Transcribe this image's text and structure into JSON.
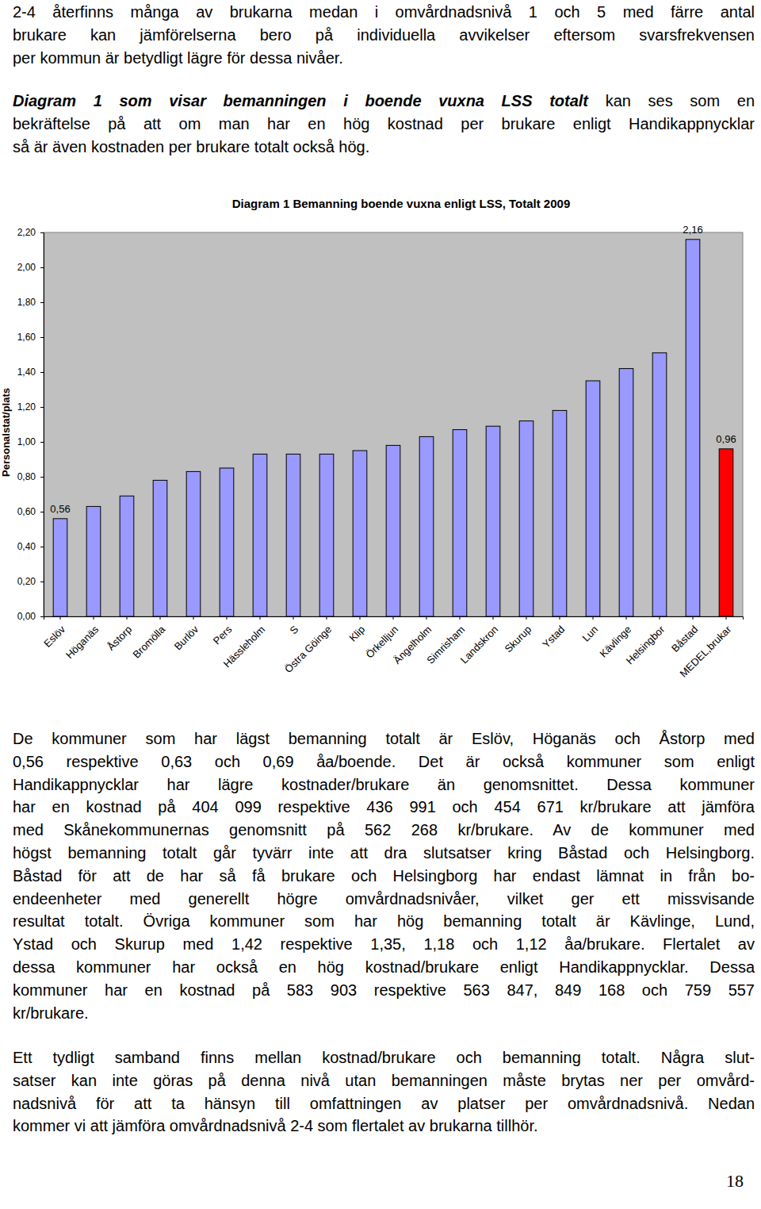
{
  "text_before": [
    {
      "lines": [
        "2-4 återfinns många av brukarna medan i omvårdnadsnivå 1 och 5 med färre antal",
        "brukare kan jämförelserna bero på individuella avvikelser eftersom svarsfrekvensen",
        "per kommun är betydligt lägre för dessa nivåer."
      ]
    },
    {
      "lines": [
        {
          "bold": "Diagram 1 som visar bemanningen i boende vuxna LSS totalt",
          "text": " kan ses som en"
        },
        "bekräftelse på att om man har en hög kostnad per brukare enligt Handikappnycklar",
        "så är även kostnaden per brukare totalt också hög."
      ]
    }
  ],
  "chart_data": {
    "type": "bar",
    "title": "Diagram 1 Bemanning boende vuxna enligt LSS, Totalt 2009",
    "y_label": "Personalstat/plats",
    "categories": [
      "Eslöv",
      "Höganäs",
      "Åstorp",
      "Bromölla",
      "Burlöv",
      "Pers",
      "Hässleholm",
      "S",
      "Östra Göinge",
      "Klip",
      "Örkelljun",
      "Ängelholm",
      "Simrisham",
      "Landskron",
      "Skurup",
      "Ystad",
      "Lun",
      "Kävlinge",
      "Helsingbor",
      "Båstad",
      "MEDEL,brukar"
    ],
    "values": [
      0.56,
      0.63,
      0.69,
      0.78,
      0.83,
      0.85,
      0.93,
      0.93,
      0.93,
      0.95,
      0.98,
      1.03,
      1.07,
      1.09,
      1.12,
      1.18,
      1.35,
      1.42,
      1.51,
      2.16,
      0.96
    ],
    "colors": [
      "#9999ff",
      "#9999ff",
      "#9999ff",
      "#9999ff",
      "#9999ff",
      "#9999ff",
      "#9999ff",
      "#9999ff",
      "#9999ff",
      "#9999ff",
      "#9999ff",
      "#9999ff",
      "#9999ff",
      "#9999ff",
      "#9999ff",
      "#9999ff",
      "#9999ff",
      "#9999ff",
      "#9999ff",
      "#9999ff",
      "#ff0000"
    ],
    "data_labels": true,
    "value_labels": [
      "0,56",
      null,
      null,
      null,
      null,
      null,
      null,
      null,
      null,
      null,
      null,
      null,
      null,
      null,
      null,
      null,
      null,
      null,
      null,
      "2,16",
      "0,96"
    ],
    "ylim": [
      0,
      2.2
    ],
    "yticks": [
      {
        "value": 0,
        "label": "0,00"
      },
      {
        "value": 0.2,
        "label": "0,20"
      },
      {
        "value": 0.4,
        "label": "0,40"
      },
      {
        "value": 0.6,
        "label": "0,60"
      },
      {
        "value": 0.8,
        "label": "0,80"
      },
      {
        "value": 1,
        "label": "1,00"
      },
      {
        "value": 1.2,
        "label": "1,20"
      },
      {
        "value": 1.4,
        "label": "1,40"
      },
      {
        "value": 1.6,
        "label": "1,60"
      },
      {
        "value": 1.8,
        "label": "1,80"
      },
      {
        "value": 2,
        "label": "2,00"
      },
      {
        "value": 2.2,
        "label": "2,20"
      }
    ],
    "grid": false
  },
  "text_after": [
    {
      "lines": [
        "De kommuner som har lägst bemanning totalt är Eslöv, Höganäs och Åstorp med",
        "0,56 respektive 0,63 och 0,69 åa/boende. Det är också kommuner som enligt",
        "Handikappnycklar har lägre kostnader/brukare än genomsnittet. Dessa kommuner",
        "har en kostnad på 404 099 respektive 436 991 och 454 671 kr/brukare att jämföra",
        "med Skånekommunernas genomsnitt på 562 268 kr/brukare. Av de kommuner med",
        "högst bemanning totalt går tyvärr inte att dra slutsatser kring Båstad och Helsingborg.",
        "Båstad för att de har så få brukare och Helsingborg har endast lämnat in från bo-",
        "endeenheter med generellt högre omvårdnadsnivåer, vilket ger ett missvisande",
        "resultat totalt. Övriga kommuner som har hög bemanning totalt är Kävlinge, Lund,",
        "Ystad och Skurup med 1,42 respektive 1,35, 1,18 och 1,12 åa/brukare. Flertalet av",
        "dessa kommuner har också en hög kostnad/brukare enligt Handikappnycklar. Dessa",
        "kommuner har en kostnad på 583 903 respektive 563 847, 849 168 och 759 557",
        "kr/brukare."
      ]
    },
    {
      "lines": [
        "Ett tydligt samband finns mellan kostnad/brukare och bemanning totalt. Några slut-",
        "satser kan inte göras på denna nivå utan bemanningen måste brytas ner per omvård-",
        "nadsnivå för att ta hänsyn till omfattningen av platser per omvårdnadsnivå. Nedan",
        "kommer vi att jämföra omvårdnadsnivå 2-4 som flertalet av brukarna tillhör."
      ]
    }
  ],
  "page_number": "18"
}
